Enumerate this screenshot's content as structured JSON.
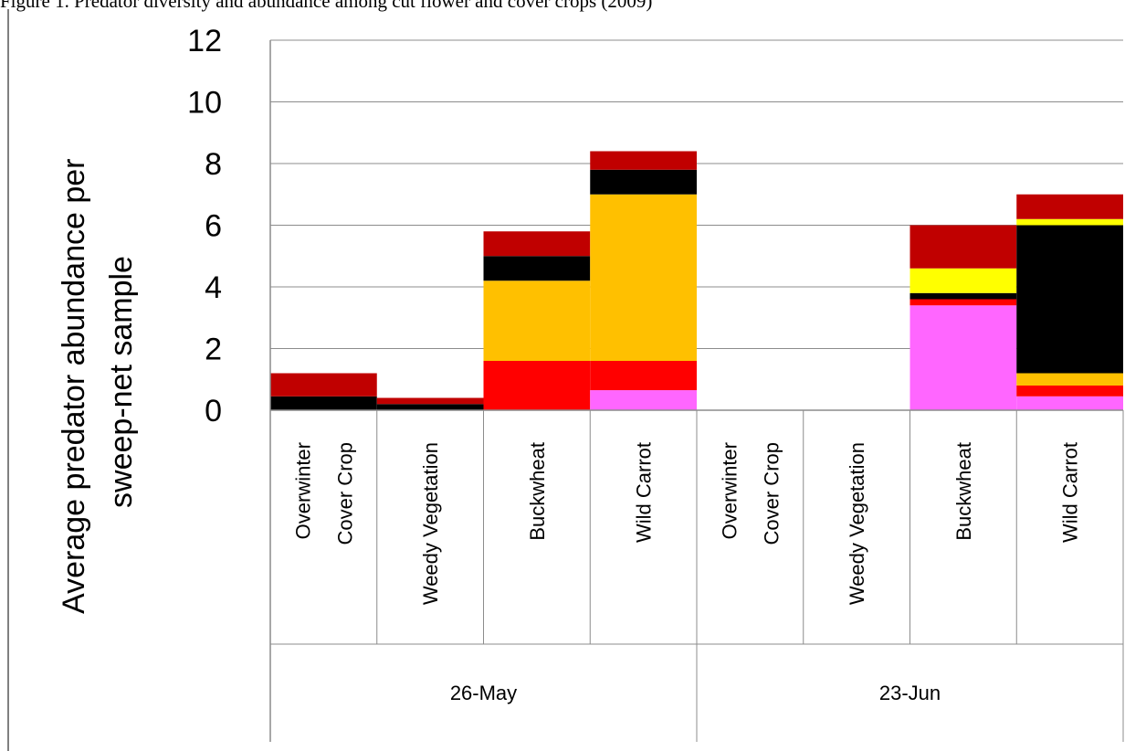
{
  "caption": "Figure 1. Predator diversity and abundance among cut flower and cover crops (2009)",
  "chart_data": {
    "type": "bar",
    "stacked": true,
    "ylabel_lines": [
      "Average predator abundance per",
      "sweep-net sample"
    ],
    "ylim": [
      0,
      12
    ],
    "yticks": [
      0,
      2,
      4,
      6,
      8,
      10,
      12
    ],
    "grid": true,
    "legend": "none",
    "categories": [
      {
        "group": "26-May",
        "lines": [
          "Overwinter",
          "Cover Crop"
        ]
      },
      {
        "group": "26-May",
        "lines": [
          "Weedy Vegetation"
        ]
      },
      {
        "group": "26-May",
        "lines": [
          "Buckwheat"
        ]
      },
      {
        "group": "26-May",
        "lines": [
          "Wild Carrot"
        ]
      },
      {
        "group": "23-Jun",
        "lines": [
          "Overwinter",
          "Cover Crop"
        ]
      },
      {
        "group": "23-Jun",
        "lines": [
          "Weedy Vegetation"
        ]
      },
      {
        "group": "23-Jun",
        "lines": [
          "Buckwheat"
        ]
      },
      {
        "group": "23-Jun",
        "lines": [
          "Wild Carrot"
        ]
      }
    ],
    "groups": [
      "26-May",
      "23-Jun"
    ],
    "series": [
      {
        "color": "#ff66ff",
        "values": [
          0,
          0,
          0,
          0.65,
          0,
          0,
          3.4,
          0.45
        ]
      },
      {
        "color": "#ff0000",
        "values": [
          0,
          0,
          1.6,
          0.95,
          0,
          0,
          0.2,
          0.35
        ]
      },
      {
        "color": "#ffc000",
        "values": [
          0,
          0,
          2.6,
          5.4,
          0,
          0,
          0,
          0.4
        ]
      },
      {
        "color": "#000000",
        "values": [
          0.45,
          0.2,
          0.8,
          0.8,
          0,
          0,
          0.2,
          4.8
        ]
      },
      {
        "color": "#ffff00",
        "values": [
          0,
          0,
          0,
          0,
          0,
          0,
          0.8,
          0.2
        ]
      },
      {
        "color": "#c00000",
        "values": [
          0.75,
          0.2,
          0.8,
          0.6,
          0,
          0,
          1.4,
          0.8
        ]
      }
    ]
  }
}
